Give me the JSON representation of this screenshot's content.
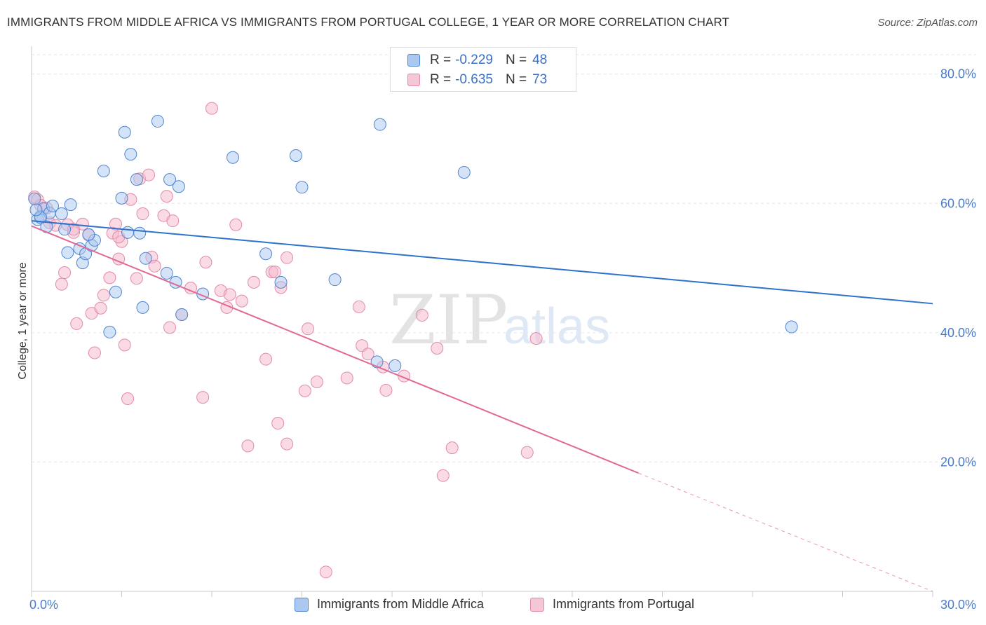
{
  "title": "IMMIGRANTS FROM MIDDLE AFRICA VS IMMIGRANTS FROM PORTUGAL COLLEGE, 1 YEAR OR MORE CORRELATION CHART",
  "source": "Source: ZipAtlas.com",
  "watermark": {
    "part1": "ZIP",
    "part2": "atlas"
  },
  "legend": {
    "r_label": "R =",
    "n_label": "N =",
    "entries": [
      {
        "r": "-0.229",
        "n": "48"
      },
      {
        "r": "-0.635",
        "n": "73"
      }
    ]
  },
  "colors": {
    "blue_fill": "#aac8f0",
    "blue_stroke": "#4f86d0",
    "blue_line": "#2f72cc",
    "pink_fill": "#f5b8cc",
    "pink_stroke": "#e38aa8",
    "pink_line": "#e06a95",
    "axis_text": "#4a7cc9"
  },
  "chart_data": {
    "type": "scatter",
    "title": "IMMIGRANTS FROM MIDDLE AFRICA VS IMMIGRANTS FROM PORTUGAL COLLEGE, 1 YEAR OR MORE CORRELATION CHART",
    "xlabel": "",
    "ylabel": "College, 1 year or more",
    "xlim": [
      0,
      30
    ],
    "ylim": [
      0,
      83
    ],
    "x_tick_labels": [
      "0.0%",
      "30.0%"
    ],
    "y_ticks": [
      20,
      40,
      60,
      80
    ],
    "y_tick_labels": [
      "20.0%",
      "40.0%",
      "60.0%",
      "80.0%"
    ],
    "grid": true,
    "legend_position": "bottom",
    "series": [
      {
        "name": "Immigrants from Middle Africa",
        "r": -0.229,
        "n": 48,
        "trend": {
          "x0": 0.0,
          "y0": 57.3,
          "x1": 30.0,
          "y1": 44.5
        },
        "points": [
          [
            0.1,
            60.7
          ],
          [
            0.2,
            57.5
          ],
          [
            0.3,
            58.0
          ],
          [
            0.4,
            59.2
          ],
          [
            0.5,
            56.4
          ],
          [
            0.6,
            58.5
          ],
          [
            0.7,
            59.6
          ],
          [
            1.0,
            58.4
          ],
          [
            1.1,
            56.0
          ],
          [
            1.2,
            52.4
          ],
          [
            1.3,
            59.8
          ],
          [
            1.6,
            53.0
          ],
          [
            1.7,
            50.8
          ],
          [
            1.8,
            52.2
          ],
          [
            2.0,
            53.5
          ],
          [
            2.1,
            54.3
          ],
          [
            2.4,
            65.0
          ],
          [
            2.6,
            40.1
          ],
          [
            2.8,
            46.3
          ],
          [
            3.0,
            60.8
          ],
          [
            3.1,
            71.0
          ],
          [
            3.2,
            55.5
          ],
          [
            3.3,
            67.6
          ],
          [
            3.5,
            63.7
          ],
          [
            3.7,
            43.9
          ],
          [
            3.8,
            51.5
          ],
          [
            4.2,
            72.7
          ],
          [
            4.5,
            49.2
          ],
          [
            4.6,
            63.7
          ],
          [
            4.8,
            47.8
          ],
          [
            4.9,
            62.6
          ],
          [
            5.0,
            42.8
          ],
          [
            5.7,
            46.0
          ],
          [
            6.7,
            67.1
          ],
          [
            7.8,
            52.2
          ],
          [
            8.3,
            47.8
          ],
          [
            8.8,
            67.4
          ],
          [
            9.0,
            62.5
          ],
          [
            10.1,
            48.2
          ],
          [
            11.5,
            35.5
          ],
          [
            11.6,
            72.2
          ],
          [
            12.1,
            34.9
          ],
          [
            14.4,
            64.8
          ],
          [
            25.3,
            40.9
          ],
          [
            0.3,
            57.8
          ],
          [
            1.9,
            55.2
          ],
          [
            0.15,
            59.0
          ],
          [
            3.6,
            55.4
          ]
        ]
      },
      {
        "name": "Immigrants from Portugal",
        "r": -0.635,
        "n": 73,
        "trend": {
          "x0": 0.0,
          "y0": 56.5,
          "x1": 20.2,
          "y1": 18.3
        },
        "trend_dash": {
          "x0": 20.2,
          "y0": 18.3,
          "x1": 30.0,
          "y1": 0.0
        },
        "points": [
          [
            0.1,
            61.0
          ],
          [
            0.2,
            60.6
          ],
          [
            0.3,
            59.7
          ],
          [
            0.5,
            59.3
          ],
          [
            0.6,
            57.0
          ],
          [
            0.8,
            56.6
          ],
          [
            1.0,
            47.5
          ],
          [
            1.1,
            49.3
          ],
          [
            1.2,
            56.7
          ],
          [
            1.4,
            55.5
          ],
          [
            1.5,
            41.4
          ],
          [
            1.7,
            56.8
          ],
          [
            1.9,
            55.1
          ],
          [
            2.0,
            43.0
          ],
          [
            2.1,
            36.9
          ],
          [
            2.3,
            43.8
          ],
          [
            2.4,
            45.8
          ],
          [
            2.6,
            48.5
          ],
          [
            2.7,
            55.4
          ],
          [
            2.8,
            56.8
          ],
          [
            2.9,
            51.4
          ],
          [
            3.0,
            54.1
          ],
          [
            3.1,
            38.1
          ],
          [
            3.2,
            29.8
          ],
          [
            3.3,
            60.6
          ],
          [
            3.5,
            48.4
          ],
          [
            3.6,
            63.8
          ],
          [
            3.7,
            58.4
          ],
          [
            3.9,
            64.4
          ],
          [
            4.0,
            51.7
          ],
          [
            4.1,
            50.3
          ],
          [
            4.4,
            58.1
          ],
          [
            4.5,
            61.1
          ],
          [
            4.6,
            40.8
          ],
          [
            4.7,
            57.3
          ],
          [
            5.0,
            42.8
          ],
          [
            5.3,
            46.9
          ],
          [
            5.7,
            30.0
          ],
          [
            5.8,
            50.9
          ],
          [
            6.0,
            74.7
          ],
          [
            6.3,
            46.5
          ],
          [
            6.5,
            43.9
          ],
          [
            6.6,
            45.9
          ],
          [
            6.8,
            56.7
          ],
          [
            7.0,
            44.9
          ],
          [
            7.2,
            22.5
          ],
          [
            7.4,
            47.8
          ],
          [
            7.8,
            35.9
          ],
          [
            8.0,
            49.4
          ],
          [
            8.2,
            26.0
          ],
          [
            8.5,
            22.8
          ],
          [
            8.3,
            47.0
          ],
          [
            8.5,
            51.6
          ],
          [
            9.1,
            31.0
          ],
          [
            9.2,
            40.6
          ],
          [
            9.5,
            32.4
          ],
          [
            9.8,
            3.0
          ],
          [
            10.5,
            33.0
          ],
          [
            10.9,
            44.0
          ],
          [
            11.0,
            38.0
          ],
          [
            11.2,
            36.7
          ],
          [
            11.7,
            34.7
          ],
          [
            11.8,
            31.1
          ],
          [
            12.4,
            33.3
          ],
          [
            13.0,
            42.7
          ],
          [
            13.5,
            37.6
          ],
          [
            13.7,
            17.9
          ],
          [
            14.0,
            22.2
          ],
          [
            16.5,
            21.5
          ],
          [
            16.8,
            39.1
          ],
          [
            1.4,
            56.0
          ],
          [
            8.1,
            49.4
          ],
          [
            2.9,
            54.8
          ]
        ]
      }
    ]
  },
  "bottom_legend": [
    "Immigrants from Middle Africa",
    "Immigrants from Portugal"
  ]
}
